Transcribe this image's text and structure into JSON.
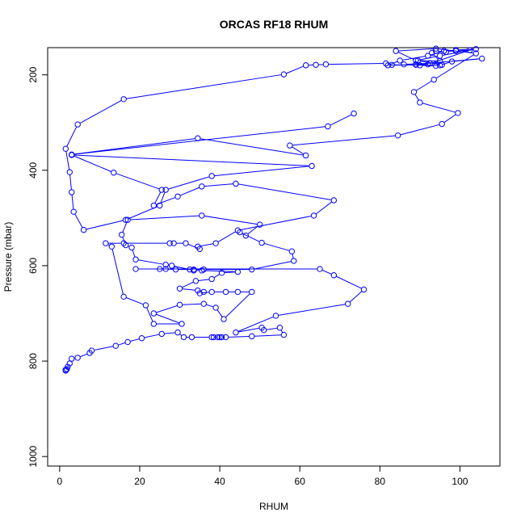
{
  "chart_data": {
    "type": "line",
    "title": "ORCAS RF18 RHUM",
    "xlabel": "RHUM",
    "ylabel": "Pressure (mbar)",
    "xlim": [
      -3,
      110
    ],
    "ylim": [
      1020,
      143
    ],
    "y_inverted": true,
    "grid": false,
    "legend": "none",
    "line_color": "#0000ff",
    "marker": "open-circle",
    "x_ticks": [
      0,
      20,
      40,
      60,
      80,
      100
    ],
    "y_ticks": [
      200,
      400,
      600,
      800,
      1000
    ],
    "series": [
      {
        "points": [
          [
            1.5,
            820
          ],
          [
            1.5,
            818
          ],
          [
            1.8,
            817
          ],
          [
            2.0,
            812
          ],
          [
            2.5,
            805
          ],
          [
            3.0,
            795
          ],
          [
            4.5,
            793
          ],
          [
            7.5,
            783
          ],
          [
            8.0,
            778
          ],
          [
            14.0,
            768
          ],
          [
            17.0,
            760
          ],
          [
            20.5,
            752
          ],
          [
            25.5,
            743
          ],
          [
            29.5,
            740
          ],
          [
            31.0,
            750
          ],
          [
            33.0,
            750
          ],
          [
            38.0,
            750
          ],
          [
            38.5,
            750
          ],
          [
            39.5,
            750
          ],
          [
            40.0,
            750
          ],
          [
            40.5,
            750
          ],
          [
            41.5,
            750
          ],
          [
            48.0,
            748
          ],
          [
            56.0,
            745
          ],
          [
            55.0,
            730
          ],
          [
            51.0,
            735
          ],
          [
            50.5,
            730
          ],
          [
            44.0,
            740
          ],
          [
            54.0,
            705
          ],
          [
            72.0,
            680
          ],
          [
            76.0,
            650
          ],
          [
            68.5,
            620
          ],
          [
            65.0,
            607
          ],
          [
            19.0,
            607
          ],
          [
            25.0,
            607
          ],
          [
            26.5,
            607
          ],
          [
            29.0,
            608
          ],
          [
            33.5,
            608
          ],
          [
            36.0,
            608
          ],
          [
            48.0,
            608
          ],
          [
            58.5,
            590
          ],
          [
            58.0,
            570
          ],
          [
            50.5,
            552
          ],
          [
            45.0,
            530
          ],
          [
            46.5,
            537
          ],
          [
            50.0,
            514
          ],
          [
            35.5,
            495
          ],
          [
            17.0,
            504
          ],
          [
            15.5,
            535
          ],
          [
            16.5,
            557
          ],
          [
            18.0,
            562
          ],
          [
            19.0,
            587
          ],
          [
            26.5,
            598
          ],
          [
            28.0,
            600
          ],
          [
            32.5,
            608
          ],
          [
            33.5,
            610
          ],
          [
            35.5,
            610
          ],
          [
            44.5,
            613
          ],
          [
            40.5,
            615
          ],
          [
            38.0,
            628
          ],
          [
            34.0,
            632
          ],
          [
            30.0,
            648
          ],
          [
            34.5,
            652
          ],
          [
            36.0,
            655
          ],
          [
            35.0,
            658
          ],
          [
            38.0,
            655
          ],
          [
            41.5,
            655
          ],
          [
            44.5,
            655
          ],
          [
            48.0,
            655
          ],
          [
            41.0,
            712
          ],
          [
            39.0,
            688
          ],
          [
            36.0,
            680
          ],
          [
            30.0,
            682
          ],
          [
            23.5,
            700
          ],
          [
            30.5,
            722
          ],
          [
            23.5,
            722
          ],
          [
            21.5,
            683
          ],
          [
            16.0,
            665
          ],
          [
            13.0,
            560
          ],
          [
            11.5,
            553
          ],
          [
            16.0,
            553
          ],
          [
            27.5,
            553
          ],
          [
            28.5,
            553
          ],
          [
            31.5,
            553
          ],
          [
            35.0,
            565
          ],
          [
            34.5,
            560
          ],
          [
            39.0,
            553
          ],
          [
            44.5,
            526
          ],
          [
            63.5,
            495
          ],
          [
            68.5,
            463
          ],
          [
            44.0,
            428
          ],
          [
            35.5,
            434
          ],
          [
            29.5,
            455
          ],
          [
            23.5,
            474
          ],
          [
            25.5,
            441
          ],
          [
            13.5,
            405
          ],
          [
            3.0,
            368
          ],
          [
            63.0,
            391
          ],
          [
            38.0,
            412
          ],
          [
            26.5,
            441
          ],
          [
            25.0,
            474
          ],
          [
            16.5,
            504
          ],
          [
            6.0,
            525
          ],
          [
            3.5,
            487
          ],
          [
            3.0,
            446
          ],
          [
            2.5,
            404
          ],
          [
            1.5,
            355
          ],
          [
            4.5,
            304
          ],
          [
            16.0,
            251
          ],
          [
            56.0,
            199
          ],
          [
            61.5,
            180
          ],
          [
            64.0,
            179
          ],
          [
            66.5,
            178
          ],
          [
            81.5,
            176
          ],
          [
            83.0,
            179
          ],
          [
            95.0,
            180
          ],
          [
            98.0,
            172
          ],
          [
            105.5,
            166
          ],
          [
            89.0,
            178
          ],
          [
            86.0,
            178
          ],
          [
            92.5,
            176
          ],
          [
            90.0,
            180
          ],
          [
            94.0,
            181
          ],
          [
            95.5,
            179
          ],
          [
            89.5,
            170
          ],
          [
            95.0,
            171
          ],
          [
            93.0,
            154
          ],
          [
            94.0,
            150
          ],
          [
            96.5,
            152
          ],
          [
            99.0,
            150
          ],
          [
            102.5,
            148
          ],
          [
            92.0,
            178
          ],
          [
            89.0,
            179
          ],
          [
            82.0,
            180
          ],
          [
            85.0,
            170
          ],
          [
            92.0,
            160
          ],
          [
            96.0,
            150
          ],
          [
            99.0,
            148
          ],
          [
            104.0,
            146
          ],
          [
            95.0,
            160
          ],
          [
            89.0,
            170
          ],
          [
            84.0,
            150
          ],
          [
            94.0,
            145
          ],
          [
            104.0,
            155
          ],
          [
            93.5,
            210
          ],
          [
            88.5,
            236
          ],
          [
            90.0,
            258
          ],
          [
            99.5,
            280
          ],
          [
            95.5,
            303
          ],
          [
            84.5,
            327
          ],
          [
            57.5,
            348
          ],
          [
            61.5,
            369
          ],
          [
            34.5,
            333
          ],
          [
            3.0,
            367
          ],
          [
            67.0,
            308
          ],
          [
            73.5,
            281
          ]
        ]
      }
    ]
  }
}
